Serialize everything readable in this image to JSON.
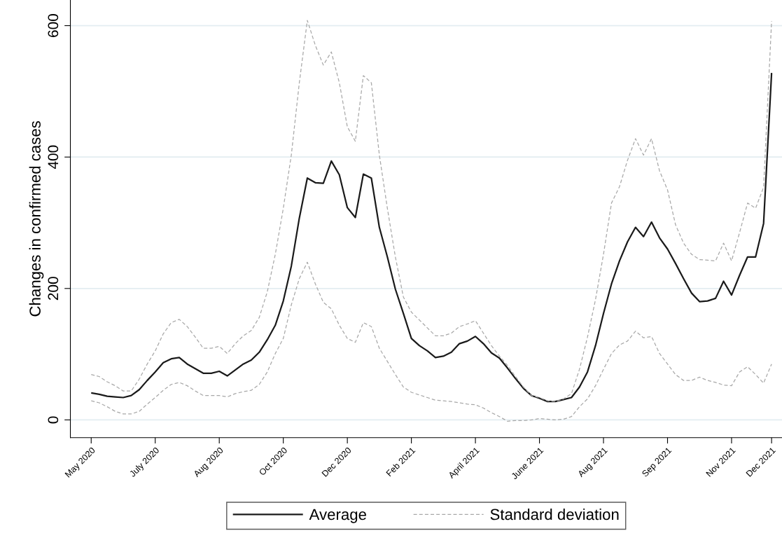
{
  "chart_data": {
    "type": "line",
    "ylabel": "Changes in confirmed cases",
    "categories": [
      "May 2020",
      null,
      null,
      null,
      null,
      null,
      null,
      null,
      "July 2020",
      null,
      null,
      null,
      null,
      null,
      null,
      null,
      "Aug 2020",
      null,
      null,
      null,
      null,
      null,
      null,
      null,
      "Oct 2020",
      null,
      null,
      null,
      null,
      null,
      null,
      null,
      "Dec 2020",
      null,
      null,
      null,
      null,
      null,
      null,
      null,
      "Feb 2021",
      null,
      null,
      null,
      null,
      null,
      null,
      null,
      "April 2021",
      null,
      null,
      null,
      null,
      null,
      null,
      null,
      "June 2021",
      null,
      null,
      null,
      null,
      null,
      null,
      null,
      "Aug 2021",
      null,
      null,
      null,
      null,
      null,
      null,
      null,
      "Sep 2021",
      null,
      null,
      null,
      null,
      null,
      null,
      null,
      "Nov 2021",
      null,
      null,
      null,
      null,
      "Dec 2021"
    ],
    "ylim": [
      -27,
      639
    ],
    "yticks": [
      0,
      200,
      400,
      600
    ],
    "grid": "y",
    "legend": "bottom",
    "marker": "none",
    "series": [
      {
        "name": "Average",
        "color": "#1a1a1a",
        "line_style": "solid",
        "values": [
          41,
          39,
          36,
          35,
          34,
          37,
          46,
          60,
          73,
          87,
          93,
          95,
          85,
          78,
          71,
          71,
          74,
          67,
          76,
          85,
          91,
          103,
          122,
          144,
          181,
          234,
          307,
          368,
          361,
          360,
          394,
          373,
          323,
          308,
          374,
          368,
          293,
          248,
          199,
          162,
          124,
          113,
          105,
          95,
          97,
          103,
          116,
          120,
          127,
          116,
          102,
          94,
          79,
          63,
          48,
          37,
          33,
          28,
          28,
          31,
          34,
          50,
          73,
          113,
          162,
          207,
          242,
          271,
          293,
          279,
          301,
          277,
          260,
          238,
          215,
          193,
          180,
          181,
          185,
          211,
          190,
          220,
          248,
          248,
          299,
          528
        ]
      },
      {
        "name": "Standard deviation",
        "color": "#a8a8a8",
        "line_style": "dashed",
        "values": [
          69,
          66,
          58,
          52,
          44,
          44,
          62,
          85,
          105,
          131,
          148,
          153,
          142,
          126,
          109,
          109,
          112,
          101,
          116,
          128,
          136,
          156,
          195,
          252,
          322,
          403,
          513,
          608,
          570,
          540,
          560,
          513,
          446,
          424,
          524,
          513,
          403,
          322,
          248,
          187,
          164,
          152,
          140,
          128,
          128,
          132,
          142,
          146,
          151,
          132,
          113,
          97,
          83,
          66,
          50,
          37,
          34,
          29,
          28,
          32,
          40,
          77,
          126,
          183,
          252,
          330,
          355,
          395,
          428,
          403,
          428,
          379,
          350,
          297,
          269,
          252,
          244,
          243,
          242,
          269,
          242,
          285,
          330,
          322,
          354,
          607
        ]
      },
      {
        "color": "#a8a8a8",
        "line_style": "dashed",
        "values": [
          29,
          26,
          20,
          13,
          9,
          9,
          13,
          24,
          34,
          45,
          54,
          57,
          52,
          44,
          37,
          37,
          37,
          35,
          40,
          43,
          45,
          54,
          73,
          101,
          124,
          175,
          215,
          240,
          207,
          179,
          169,
          144,
          124,
          118,
          148,
          142,
          109,
          89,
          69,
          50,
          42,
          38,
          34,
          30,
          29,
          28,
          26,
          24,
          23,
          18,
          11,
          5,
          -2,
          -1,
          -1,
          0,
          2,
          1,
          0,
          1,
          5,
          20,
          32,
          52,
          77,
          101,
          114,
          120,
          135,
          125,
          127,
          101,
          85,
          69,
          60,
          60,
          65,
          60,
          57,
          53,
          52,
          73,
          81,
          69,
          56,
          85
        ]
      }
    ]
  }
}
